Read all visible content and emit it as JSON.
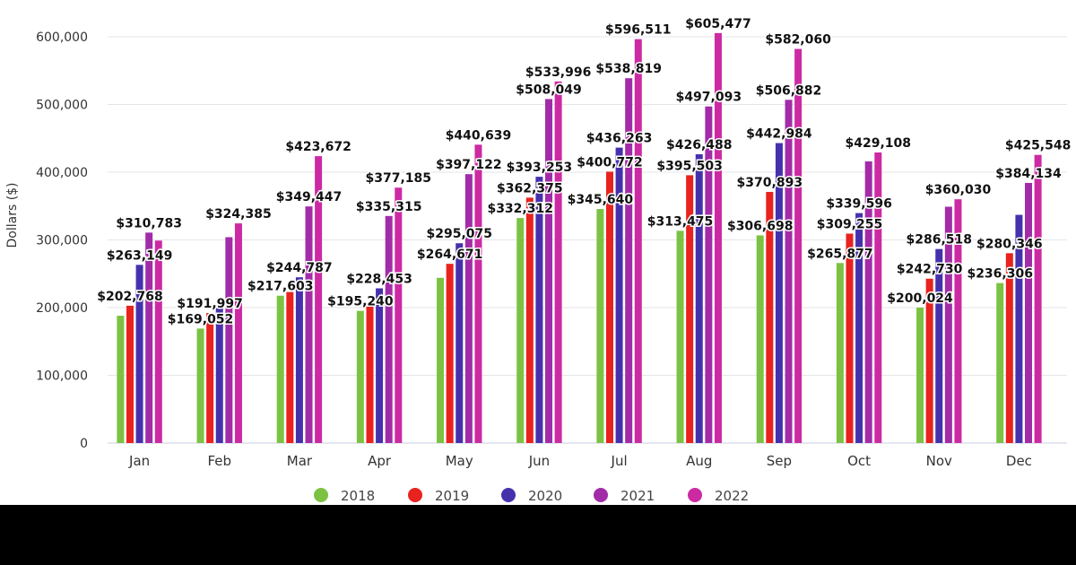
{
  "chart_data": {
    "type": "bar",
    "title": "",
    "xlabel": "",
    "ylabel": "Dollars ($)",
    "ylim": [
      0,
      600000
    ],
    "yticks": [
      0,
      100000,
      200000,
      300000,
      400000,
      500000,
      600000
    ],
    "ytick_labels": [
      "0",
      "100,000",
      "200,000",
      "300,000",
      "400,000",
      "500,000",
      "600,000"
    ],
    "grid": true,
    "legend_position": "bottom",
    "categories": [
      "Jan",
      "Feb",
      "Mar",
      "Apr",
      "May",
      "Jun",
      "Jul",
      "Aug",
      "Sep",
      "Oct",
      "Nov",
      "Dec"
    ],
    "series": [
      {
        "name": "2018",
        "color": "#7cc242",
        "values": [
          188000,
          169052,
          217603,
          195240,
          244000,
          332312,
          345640,
          313475,
          306698,
          265877,
          200024,
          236306
        ],
        "labels": [
          null,
          "$169,052",
          "$217,603",
          "$195,240",
          null,
          "$332,312",
          "$345,640",
          "$313,475",
          "$306,698",
          "$265,877",
          "$200,024",
          "$236,306"
        ]
      },
      {
        "name": "2019",
        "color": "#e8221e",
        "values": [
          202768,
          191997,
          223000,
          205000,
          264671,
          362375,
          400772,
          395503,
          370893,
          309255,
          242730,
          280346
        ],
        "labels": [
          "$202,768",
          "$191,997",
          null,
          null,
          "$264,671",
          "$362,375",
          "$400,772",
          "$395,503",
          "$370,893",
          "$309,255",
          "$242,730",
          "$280,346"
        ]
      },
      {
        "name": "2020",
        "color": "#4631ad",
        "values": [
          263149,
          203000,
          244787,
          228453,
          295075,
          393253,
          436263,
          426488,
          442984,
          339596,
          286518,
          337000
        ],
        "labels": [
          "$263,149",
          null,
          "$244,787",
          "$228,453",
          "$295,075",
          "$393,253",
          "$436,263",
          "$426,488",
          "$442,984",
          "$339,596",
          "$286,518",
          null
        ]
      },
      {
        "name": "2021",
        "color": "#a22ca8",
        "values": [
          310783,
          304000,
          349447,
          335315,
          397122,
          508049,
          538819,
          497093,
          506882,
          416000,
          349000,
          384134
        ],
        "labels": [
          "$310,783",
          null,
          "$349,447",
          "$335,315",
          "$397,122",
          "$508,049",
          "$538,819",
          "$497,093",
          "$506,882",
          null,
          null,
          "$384,134"
        ]
      },
      {
        "name": "2022",
        "color": "#cc2aa3",
        "values": [
          299000,
          324385,
          423672,
          377185,
          440639,
          533996,
          596511,
          605477,
          582060,
          429108,
          360030,
          425548
        ],
        "labels": [
          null,
          "$324,385",
          "$423,672",
          "$377,185",
          "$440,639",
          "$533,996",
          "$596,511",
          "$605,477",
          "$582,060",
          "$429,108",
          "$360,030",
          "$425,548"
        ]
      }
    ]
  }
}
